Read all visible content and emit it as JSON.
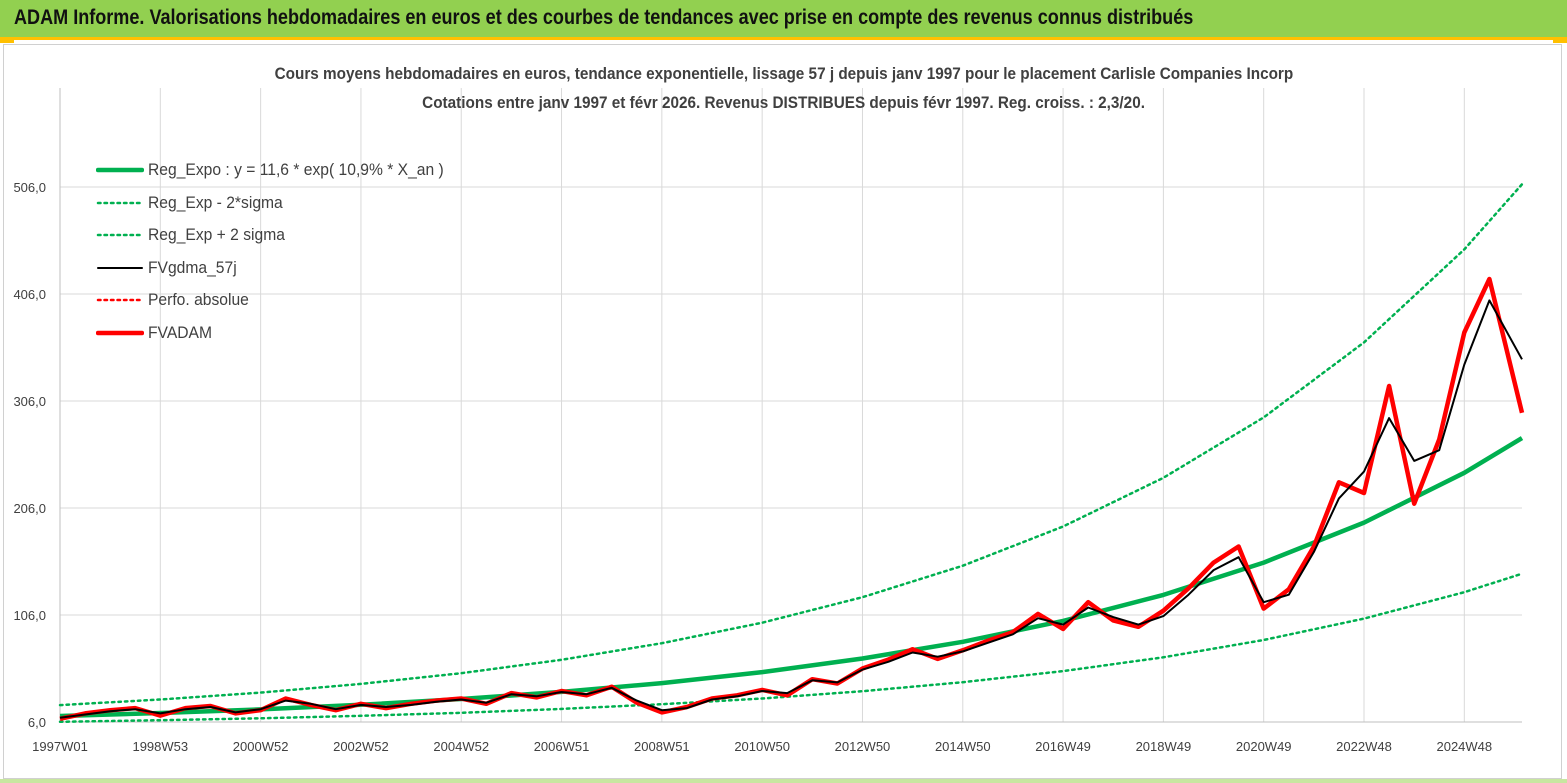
{
  "banner": {
    "title": "ADAM Informe. Valorisations hebdomadaires en euros et des courbes de tendances avec prise en compte des revenus connus distribués"
  },
  "chart_data": {
    "type": "line",
    "title": "Cours moyens hebdomadaires en euros, tendance exponentielle, lissage 57 j depuis janv 1997  pour le placement Carlisle Companies Incorp",
    "subtitle": "Cotations entre janv 1997  et févr  2026. Revenus DISTRIBUES  depuis févr  1997. Reg. croiss. : 2,3/20.",
    "xlabel": "",
    "ylabel": "",
    "ylim": [
      6.0,
      506.0
    ],
    "xlim": [
      1997.0,
      2026.15
    ],
    "grid": true,
    "y_ticks": [
      "6,0",
      "106,0",
      "206,0",
      "306,0",
      "406,0",
      "506,0"
    ],
    "x_ticks": [
      {
        "label": "1997W01",
        "x": 1997.0
      },
      {
        "label": "1998W53",
        "x": 1999.0
      },
      {
        "label": "2000W52",
        "x": 2001.0
      },
      {
        "label": "2002W52",
        "x": 2003.0
      },
      {
        "label": "2004W52",
        "x": 2005.0
      },
      {
        "label": "2006W51",
        "x": 2007.0
      },
      {
        "label": "2008W51",
        "x": 2009.0
      },
      {
        "label": "2010W50",
        "x": 2011.0
      },
      {
        "label": "2012W50",
        "x": 2013.0
      },
      {
        "label": "2014W50",
        "x": 2015.0
      },
      {
        "label": "2016W49",
        "x": 2017.0
      },
      {
        "label": "2018W49",
        "x": 2019.0
      },
      {
        "label": "2020W49",
        "x": 2021.0
      },
      {
        "label": "2022W48",
        "x": 2023.0
      },
      {
        "label": "2024W48",
        "x": 2025.0
      }
    ],
    "legend_position": "top-left",
    "series": [
      {
        "name": "Reg_Expo : y = 11,6 * exp( 10,9% *  X_an )",
        "color": "#00b050",
        "style": "solid-thick",
        "x": [
          1997,
          1999,
          2001,
          2003,
          2005,
          2007,
          2009,
          2011,
          2013,
          2015,
          2017,
          2019,
          2021,
          2023,
          2025,
          2026.15
        ],
        "y": [
          11.6,
          14.4,
          17.8,
          22.1,
          27.5,
          34.1,
          42.4,
          52.6,
          65.3,
          81.0,
          100.5,
          124.8,
          155.0,
          192.4,
          238.9,
          271.3
        ]
      },
      {
        "name": "Reg_Exp - 2*sigma",
        "color": "#00b050",
        "style": "dotted",
        "x": [
          1997,
          1999,
          2001,
          2003,
          2005,
          2007,
          2009,
          2011,
          2013,
          2015,
          2017,
          2019,
          2021,
          2023,
          2025,
          2026.15
        ],
        "y": [
          6.2,
          7.7,
          9.5,
          11.8,
          14.6,
          18.2,
          22.6,
          28.0,
          34.8,
          43.2,
          53.6,
          66.5,
          82.6,
          102.6,
          127.3,
          144.6
        ]
      },
      {
        "name": "Reg_Exp + 2 sigma",
        "color": "#00b050",
        "style": "dotted",
        "x": [
          1997,
          1999,
          2001,
          2003,
          2005,
          2007,
          2009,
          2011,
          2013,
          2015,
          2017,
          2019,
          2021,
          2023,
          2025,
          2026.15
        ],
        "y": [
          21.8,
          27.0,
          33.5,
          41.6,
          51.6,
          64.1,
          79.6,
          98.8,
          122.6,
          152.1,
          188.7,
          234.2,
          290.7,
          360.8,
          447.7,
          508.5
        ]
      },
      {
        "name": "FVgdma_57j",
        "color": "#000000",
        "style": "solid",
        "x": [
          1997,
          1997.5,
          1998,
          1998.5,
          1999,
          1999.5,
          2000,
          2000.5,
          2001,
          2001.5,
          2002,
          2002.5,
          2003,
          2003.5,
          2004,
          2004.5,
          2005,
          2005.5,
          2006,
          2006.5,
          2007,
          2007.5,
          2008,
          2008.5,
          2009,
          2009.5,
          2010,
          2010.5,
          2011,
          2011.5,
          2012,
          2012.5,
          2013,
          2013.5,
          2014,
          2014.5,
          2015,
          2015.5,
          2016,
          2016.5,
          2017,
          2017.5,
          2018,
          2018.5,
          2019,
          2019.5,
          2020,
          2020.5,
          2021,
          2021.5,
          2022,
          2022.5,
          2023,
          2023.5,
          2024,
          2024.5,
          2025,
          2025.5,
          2026.15
        ],
        "y": [
          10,
          13,
          16,
          18,
          14,
          18,
          20,
          15,
          18,
          26,
          23,
          18,
          22,
          20,
          22,
          25,
          27,
          24,
          32,
          30,
          34,
          32,
          38,
          26,
          17,
          19,
          27,
          30,
          35,
          33,
          45,
          43,
          55,
          62,
          71,
          67,
          72,
          80,
          88,
          103,
          97,
          113,
          104,
          97,
          105,
          125,
          148,
          160,
          118,
          125,
          165,
          215,
          240,
          290,
          250,
          260,
          340,
          400,
          345
        ]
      },
      {
        "name": "Perfo. absolue",
        "color": "#ff0000",
        "style": "dotted",
        "x": [],
        "y": []
      },
      {
        "name": "FVADAM",
        "color": "#ff0000",
        "style": "solid-thick",
        "x": [
          1997,
          1997.5,
          1998,
          1998.5,
          1999,
          1999.5,
          2000,
          2000.5,
          2001,
          2001.5,
          2002,
          2002.5,
          2003,
          2003.5,
          2004,
          2004.5,
          2005,
          2005.5,
          2006,
          2006.5,
          2007,
          2007.5,
          2008,
          2008.5,
          2009,
          2009.5,
          2010,
          2010.5,
          2011,
          2011.5,
          2012,
          2012.5,
          2013,
          2013.5,
          2014,
          2014.5,
          2015,
          2015.5,
          2016,
          2016.5,
          2017,
          2017.5,
          2018,
          2018.5,
          2019,
          2019.5,
          2020,
          2020.5,
          2021,
          2021.5,
          2022,
          2022.5,
          2023,
          2023.5,
          2024,
          2024.5,
          2025,
          2025.5,
          2026.15
        ],
        "y": [
          9,
          14,
          17,
          19,
          12,
          19,
          21,
          14,
          17,
          28,
          22,
          17,
          23,
          19,
          23,
          26,
          28,
          23,
          33,
          29,
          35,
          31,
          39,
          24,
          15,
          20,
          28,
          31,
          36,
          31,
          46,
          42,
          56,
          64,
          74,
          65,
          73,
          82,
          90,
          107,
          93,
          118,
          101,
          95,
          110,
          131,
          155,
          170,
          112,
          130,
          170,
          230,
          220,
          320,
          210,
          270,
          370,
          420,
          295
        ]
      }
    ]
  }
}
